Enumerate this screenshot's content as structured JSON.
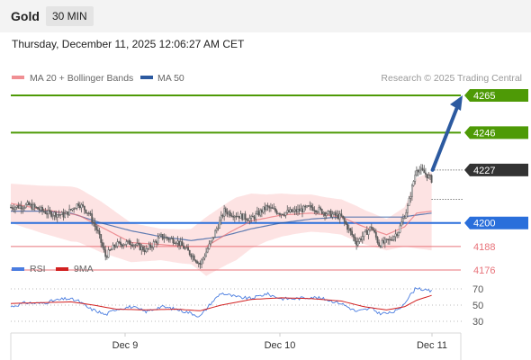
{
  "header": {
    "title": "Gold",
    "timeframe": "30 MIN",
    "datetime": "Thursday, December 11, 2025 12:06:27 AM CET"
  },
  "legend": {
    "ma20": "MA 20 + Bollinger Bands",
    "ma50": "MA 50",
    "credit": "Research © 2025 Trading Central",
    "rsi": "RSI",
    "rsi_ma": "9MA"
  },
  "colors": {
    "resistance": "#4e9a06",
    "support": "#2a6fdb",
    "minor_support": "#e8737a",
    "current_price": "#333333",
    "ma20": "#e8737a",
    "ma50": "#2c5aa0",
    "bollinger_fill": "#fde0e0",
    "candle": "#5a5a5a",
    "arrow": "#2c5aa0",
    "rsi": "#4a7de0",
    "rsi_ma": "#d22020"
  },
  "chart_data": [
    {
      "type": "candlestick",
      "ylim": [
        4162,
        4278
      ],
      "x": [
        "Dec 9",
        "Dec 10",
        "Dec 11"
      ],
      "levels": [
        {
          "label": "4265",
          "value": 4265,
          "kind": "resistance"
        },
        {
          "label": "4246",
          "value": 4246,
          "kind": "resistance"
        },
        {
          "label": "4227",
          "value": 4227,
          "kind": "current"
        },
        {
          "label": "4200",
          "value": 4200,
          "kind": "support"
        },
        {
          "label": "4188",
          "value": 4188,
          "kind": "minor-support"
        },
        {
          "label": "4176",
          "value": 4176,
          "kind": "minor-support"
        }
      ],
      "pivot": 4212,
      "arrow": {
        "from": 4227,
        "to": 4265
      },
      "anchors": [
        [
          0,
          4208
        ],
        [
          12,
          4209
        ],
        [
          25,
          4205
        ],
        [
          36,
          4204
        ],
        [
          45,
          4210
        ],
        [
          52,
          4205
        ],
        [
          58,
          4195
        ],
        [
          63,
          4183
        ],
        [
          70,
          4189
        ],
        [
          80,
          4190
        ],
        [
          90,
          4186
        ],
        [
          100,
          4193
        ],
        [
          110,
          4191
        ],
        [
          120,
          4184
        ],
        [
          126,
          4179
        ],
        [
          133,
          4190
        ],
        [
          142,
          4206
        ],
        [
          150,
          4204
        ],
        [
          160,
          4202
        ],
        [
          170,
          4208
        ],
        [
          180,
          4205
        ],
        [
          190,
          4206
        ],
        [
          200,
          4208
        ],
        [
          210,
          4205
        ],
        [
          220,
          4203
        ],
        [
          230,
          4190
        ],
        [
          240,
          4198
        ],
        [
          245,
          4189
        ],
        [
          252,
          4191
        ],
        [
          258,
          4196
        ],
        [
          264,
          4208
        ],
        [
          270,
          4228
        ],
        [
          276,
          4225
        ],
        [
          280,
          4222
        ]
      ],
      "ma20": [
        [
          0,
          4210
        ],
        [
          20,
          4207
        ],
        [
          45,
          4204
        ],
        [
          60,
          4198
        ],
        [
          80,
          4190
        ],
        [
          100,
          4189
        ],
        [
          115,
          4188
        ],
        [
          130,
          4188
        ],
        [
          145,
          4195
        ],
        [
          160,
          4201
        ],
        [
          180,
          4204
        ],
        [
          200,
          4205
        ],
        [
          220,
          4203
        ],
        [
          235,
          4198
        ],
        [
          250,
          4194
        ],
        [
          262,
          4198
        ],
        [
          270,
          4205
        ],
        [
          280,
          4206
        ]
      ],
      "ma50": [
        [
          0,
          4206
        ],
        [
          20,
          4206
        ],
        [
          40,
          4205
        ],
        [
          60,
          4200
        ],
        [
          80,
          4196
        ],
        [
          100,
          4193
        ],
        [
          120,
          4191
        ],
        [
          140,
          4193
        ],
        [
          160,
          4197
        ],
        [
          180,
          4200
        ],
        [
          200,
          4202
        ],
        [
          220,
          4203
        ],
        [
          240,
          4203
        ],
        [
          260,
          4203
        ],
        [
          270,
          4204
        ],
        [
          280,
          4205
        ]
      ],
      "bb_width": [
        [
          0,
          10
        ],
        [
          20,
          12
        ],
        [
          40,
          14
        ],
        [
          60,
          13
        ],
        [
          80,
          10
        ],
        [
          100,
          8
        ],
        [
          120,
          9
        ],
        [
          130,
          15
        ],
        [
          150,
          16
        ],
        [
          170,
          12
        ],
        [
          190,
          10
        ],
        [
          210,
          9
        ],
        [
          230,
          9
        ],
        [
          250,
          8
        ],
        [
          262,
          10
        ],
        [
          270,
          18
        ],
        [
          280,
          20
        ]
      ]
    },
    {
      "type": "line",
      "name": "RSI",
      "ylim": [
        20,
        80
      ],
      "yticks": [
        30,
        50,
        70
      ],
      "rsi": [
        [
          0,
          48
        ],
        [
          10,
          53
        ],
        [
          20,
          52
        ],
        [
          30,
          56
        ],
        [
          38,
          58
        ],
        [
          45,
          55
        ],
        [
          52,
          46
        ],
        [
          58,
          42
        ],
        [
          63,
          38
        ],
        [
          70,
          45
        ],
        [
          80,
          48
        ],
        [
          90,
          42
        ],
        [
          100,
          48
        ],
        [
          110,
          45
        ],
        [
          120,
          40
        ],
        [
          126,
          36
        ],
        [
          133,
          52
        ],
        [
          140,
          65
        ],
        [
          150,
          60
        ],
        [
          160,
          58
        ],
        [
          170,
          64
        ],
        [
          180,
          58
        ],
        [
          190,
          58
        ],
        [
          200,
          60
        ],
        [
          210,
          57
        ],
        [
          220,
          52
        ],
        [
          230,
          42
        ],
        [
          240,
          46
        ],
        [
          245,
          40
        ],
        [
          252,
          40
        ],
        [
          258,
          44
        ],
        [
          264,
          58
        ],
        [
          270,
          72
        ],
        [
          276,
          68
        ],
        [
          280,
          67
        ]
      ],
      "ma9": [
        [
          0,
          52
        ],
        [
          20,
          53
        ],
        [
          40,
          54
        ],
        [
          55,
          50
        ],
        [
          70,
          45
        ],
        [
          90,
          44
        ],
        [
          110,
          45
        ],
        [
          126,
          43
        ],
        [
          140,
          50
        ],
        [
          160,
          57
        ],
        [
          180,
          59
        ],
        [
          200,
          58
        ],
        [
          220,
          55
        ],
        [
          235,
          48
        ],
        [
          250,
          44
        ],
        [
          262,
          48
        ],
        [
          270,
          56
        ],
        [
          280,
          62
        ]
      ]
    }
  ]
}
